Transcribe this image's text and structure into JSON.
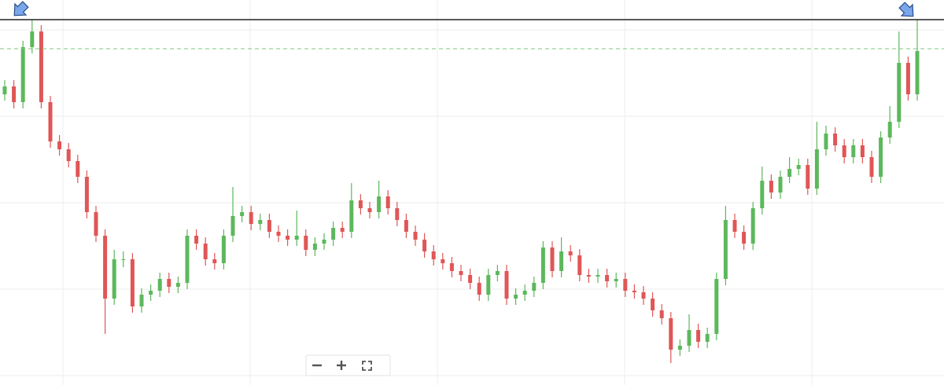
{
  "chart_data": {
    "type": "candlestick",
    "open": [
      358,
      368,
      348,
      418,
      438,
      348,
      298,
      288,
      273,
      253,
      208,
      178,
      98,
      148,
      148,
      88,
      103,
      108,
      123,
      113,
      118,
      178,
      168,
      148,
      143,
      178,
      203,
      208,
      193,
      198,
      183,
      178,
      173,
      178,
      160,
      168,
      173,
      188,
      183,
      223,
      213,
      208,
      228,
      213,
      198,
      183,
      173,
      158,
      148,
      143,
      133,
      128,
      118,
      103,
      128,
      133,
      98,
      103,
      108,
      118,
      163,
      133,
      158,
      153,
      128,
      126,
      128,
      120,
      123,
      108,
      106,
      98,
      83,
      73,
      33,
      38,
      58,
      43,
      53,
      123,
      198,
      183,
      168,
      213,
      248,
      233,
      253,
      263,
      268,
      238,
      288,
      308,
      293,
      278,
      293,
      278,
      253,
      303,
      323,
      398,
      358
    ],
    "high": [
      376,
      376,
      426,
      453,
      446,
      356,
      306,
      296,
      281,
      261,
      216,
      186,
      160,
      158,
      156,
      111,
      116,
      131,
      131,
      126,
      186,
      186,
      176,
      156,
      186,
      240,
      216,
      216,
      206,
      206,
      191,
      186,
      210,
      186,
      176,
      181,
      196,
      196,
      245,
      231,
      221,
      248,
      236,
      221,
      206,
      191,
      181,
      166,
      156,
      151,
      141,
      136,
      126,
      136,
      141,
      141,
      111,
      116,
      126,
      171,
      171,
      176,
      166,
      161,
      136,
      136,
      136,
      131,
      131,
      116,
      114,
      106,
      91,
      81,
      46,
      78,
      66,
      61,
      131,
      216,
      206,
      191,
      221,
      266,
      256,
      261,
      278,
      276,
      276,
      323,
      318,
      316,
      301,
      301,
      301,
      286,
      311,
      343,
      438,
      406,
      453
    ],
    "low": [
      350,
      340,
      340,
      410,
      340,
      290,
      280,
      265,
      245,
      200,
      170,
      53,
      90,
      138,
      80,
      80,
      95,
      100,
      105,
      105,
      110,
      160,
      140,
      135,
      135,
      170,
      195,
      185,
      185,
      175,
      170,
      165,
      165,
      152,
      152,
      160,
      165,
      175,
      175,
      205,
      200,
      200,
      205,
      190,
      175,
      165,
      150,
      140,
      135,
      125,
      120,
      110,
      95,
      95,
      120,
      90,
      90,
      95,
      100,
      110,
      125,
      125,
      145,
      120,
      118,
      118,
      112,
      112,
      100,
      98,
      90,
      75,
      65,
      16,
      25,
      30,
      35,
      35,
      45,
      115,
      175,
      160,
      160,
      205,
      225,
      225,
      245,
      255,
      230,
      230,
      280,
      285,
      270,
      270,
      270,
      245,
      245,
      295,
      315,
      350,
      350
    ],
    "close": [
      368,
      348,
      418,
      438,
      348,
      298,
      288,
      273,
      253,
      208,
      178,
      98,
      148,
      148,
      88,
      103,
      108,
      123,
      113,
      118,
      178,
      168,
      148,
      143,
      178,
      203,
      208,
      193,
      198,
      183,
      178,
      173,
      178,
      160,
      168,
      173,
      188,
      183,
      223,
      213,
      208,
      228,
      213,
      198,
      183,
      173,
      158,
      148,
      143,
      133,
      128,
      118,
      103,
      128,
      133,
      98,
      103,
      108,
      118,
      163,
      133,
      158,
      153,
      128,
      126,
      128,
      120,
      123,
      108,
      106,
      98,
      83,
      73,
      33,
      38,
      58,
      43,
      53,
      123,
      198,
      183,
      168,
      213,
      248,
      233,
      253,
      263,
      268,
      238,
      288,
      308,
      293,
      278,
      293,
      278,
      253,
      303,
      323,
      398,
      358,
      413
    ],
    "up_color": "#5cb85c",
    "down_color": "#e05656",
    "ylim": [
      -12,
      478
    ],
    "yticks": [
      0,
      110,
      220,
      330,
      440
    ],
    "grid": true,
    "hlines": [
      {
        "value": 453,
        "color": "#222222",
        "style": "solid"
      },
      {
        "value": 416,
        "color": "#7cc97c",
        "style": "dashed"
      }
    ]
  }
}
